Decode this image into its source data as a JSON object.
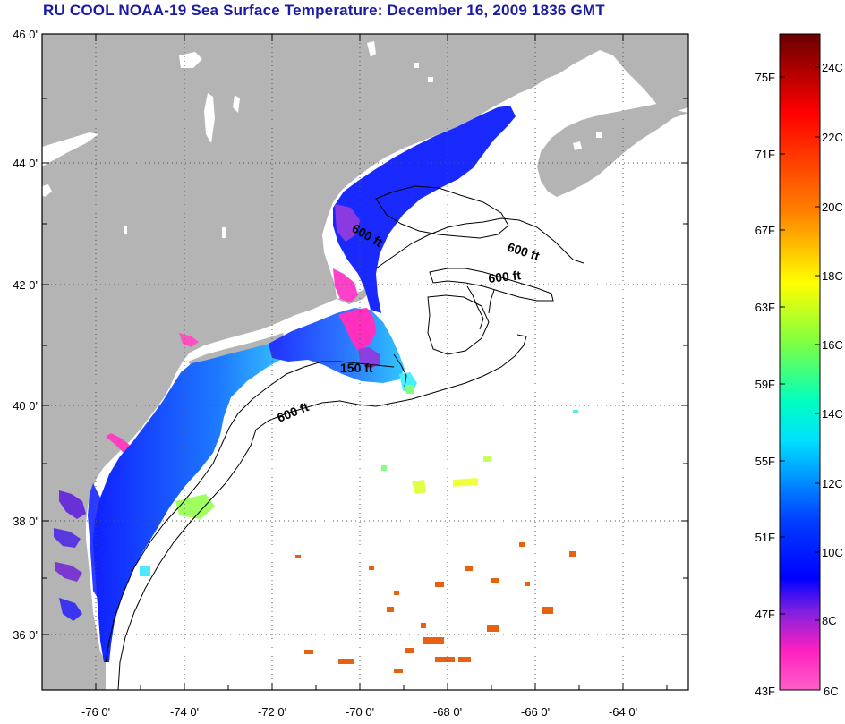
{
  "title": "RU COOL  NOAA-19  Sea Surface Temperature:  December 16, 2009 1836 GMT",
  "map": {
    "lat_range": [
      35,
      46
    ],
    "lon_range": [
      -77,
      -63
    ],
    "lat_ticks": [
      "46 0'",
      "44 0'",
      "42 0'",
      "40 0'",
      "38 0'",
      "36 0'"
    ],
    "lon_ticks": [
      "-76 0'",
      "-74 0'",
      "-72 0'",
      "-70 0'",
      "-68 0'",
      "-66 0'",
      "-64 0'"
    ],
    "grid": "dotted",
    "land_color": "#b4b4b4",
    "ocean_no_data_color": "#ffffff"
  },
  "contour_labels": [
    {
      "text": "600 ft",
      "id": "gulf-maine-1"
    },
    {
      "text": "600 ft",
      "id": "gulf-maine-2"
    },
    {
      "text": "600 ft",
      "id": "georges-bank"
    },
    {
      "text": "150 ft",
      "id": "nantucket-shoals"
    },
    {
      "text": "600 ft",
      "id": "shelf-break"
    }
  ],
  "colorbar": {
    "fahrenheit_labels": [
      "75F",
      "71F",
      "67F",
      "63F",
      "59F",
      "55F",
      "51F",
      "47F",
      "43F"
    ],
    "celsius_labels": [
      "24C",
      "22C",
      "20C",
      "18C",
      "16C",
      "14C",
      "12C",
      "10C",
      "8C",
      "6C"
    ],
    "gradient_colors": [
      "#7a0000",
      "#ff0000",
      "#ff8000",
      "#ffff00",
      "#00ff60",
      "#00ffff",
      "#0000ff",
      "#8000ff",
      "#ff1aa0",
      "#ff66cc"
    ]
  }
}
